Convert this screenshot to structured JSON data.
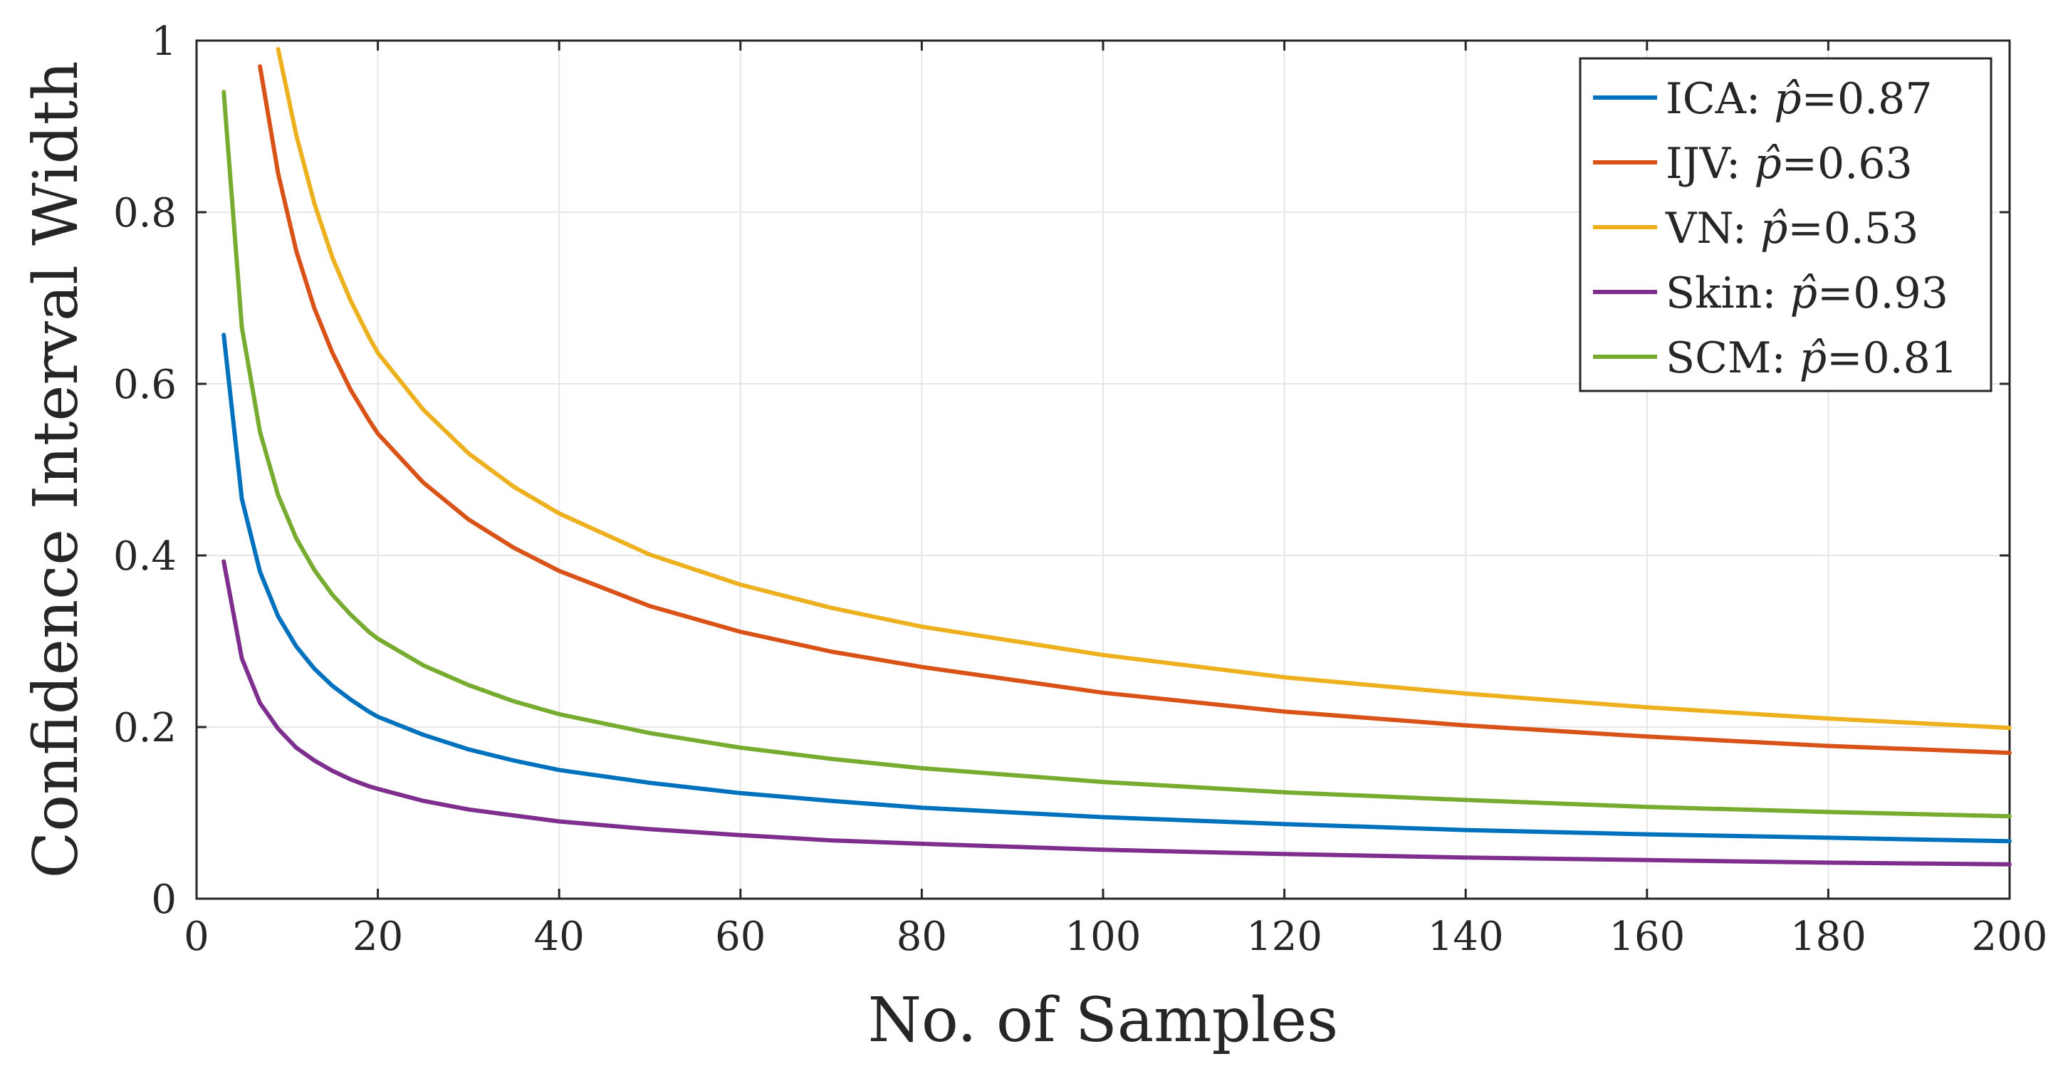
{
  "chart_data": {
    "type": "line",
    "xlabel": "No. of Samples",
    "ylabel": "Confidence Interval Width",
    "xlim": [
      0,
      200
    ],
    "ylim": [
      0,
      1
    ],
    "grid": true,
    "legend_position": "top-right",
    "xticks": [
      0,
      20,
      40,
      60,
      80,
      100,
      120,
      140,
      160,
      180,
      200
    ],
    "yticks": [
      0,
      0.2,
      0.4,
      0.6,
      0.8,
      1
    ],
    "xtick_labels": [
      "0",
      "20",
      "40",
      "60",
      "80",
      "100",
      "120",
      "140",
      "160",
      "180",
      "200"
    ],
    "ytick_labels": [
      "0",
      "0.2",
      "0.4",
      "0.6",
      "0.8",
      "1"
    ],
    "series": [
      {
        "name": "ICA: p̂=0.87",
        "label": "ICA:",
        "p_value": "0.87",
        "color": "#0072BD",
        "x": [
          3,
          5,
          7,
          9,
          11,
          13,
          15,
          17,
          19,
          20,
          25,
          30,
          35,
          40,
          50,
          60,
          70,
          80,
          100,
          120,
          140,
          160,
          180,
          200
        ],
        "y": [
          0.657,
          0.466,
          0.381,
          0.329,
          0.294,
          0.268,
          0.248,
          0.232,
          0.218,
          0.212,
          0.191,
          0.174,
          0.161,
          0.15,
          0.135,
          0.123,
          0.114,
          0.106,
          0.095,
          0.087,
          0.08,
          0.075,
          0.071,
          0.067
        ]
      },
      {
        "name": "IJV: p̂=0.63",
        "label": "IJV:",
        "p_value": "0.63",
        "color": "#D95319",
        "x": [
          7,
          9,
          11,
          13,
          15,
          17,
          19,
          20,
          25,
          30,
          35,
          40,
          50,
          60,
          70,
          80,
          100,
          120,
          140,
          160,
          180,
          200
        ],
        "y": [
          0.97,
          0.845,
          0.755,
          0.688,
          0.636,
          0.593,
          0.558,
          0.542,
          0.485,
          0.442,
          0.409,
          0.382,
          0.341,
          0.311,
          0.288,
          0.27,
          0.24,
          0.218,
          0.202,
          0.189,
          0.178,
          0.17
        ]
      },
      {
        "name": "VN: p̂=0.53",
        "label": "VN:",
        "p_value": "0.53",
        "color": "#EDB120",
        "x": [
          9,
          11,
          13,
          15,
          17,
          19,
          20,
          25,
          30,
          35,
          40,
          50,
          60,
          70,
          80,
          100,
          120,
          140,
          160,
          180,
          200
        ],
        "y": [
          0.99,
          0.89,
          0.81,
          0.747,
          0.697,
          0.655,
          0.636,
          0.57,
          0.519,
          0.48,
          0.449,
          0.401,
          0.366,
          0.339,
          0.317,
          0.284,
          0.258,
          0.239,
          0.223,
          0.21,
          0.199
        ]
      },
      {
        "name": "Skin: p̂=0.93",
        "label": "Skin:",
        "p_value": "0.93",
        "color": "#7E2F8E",
        "x": [
          3,
          5,
          7,
          9,
          11,
          13,
          15,
          17,
          19,
          20,
          25,
          30,
          35,
          40,
          50,
          60,
          70,
          80,
          100,
          120,
          140,
          160,
          180,
          200
        ],
        "y": [
          0.393,
          0.28,
          0.228,
          0.198,
          0.176,
          0.161,
          0.149,
          0.139,
          0.131,
          0.128,
          0.114,
          0.104,
          0.097,
          0.09,
          0.081,
          0.074,
          0.068,
          0.064,
          0.057,
          0.052,
          0.048,
          0.045,
          0.042,
          0.04
        ]
      },
      {
        "name": "SCM: p̂=0.81",
        "label": "SCM:",
        "p_value": "0.81",
        "color": "#77AC30",
        "x": [
          3,
          5,
          7,
          9,
          11,
          13,
          15,
          17,
          19,
          20,
          25,
          30,
          35,
          40,
          50,
          60,
          70,
          80,
          100,
          120,
          140,
          160,
          180,
          200
        ],
        "y": [
          0.94,
          0.666,
          0.544,
          0.47,
          0.42,
          0.383,
          0.354,
          0.331,
          0.311,
          0.303,
          0.272,
          0.249,
          0.23,
          0.215,
          0.193,
          0.176,
          0.163,
          0.152,
          0.136,
          0.124,
          0.115,
          0.107,
          0.101,
          0.096
        ]
      }
    ]
  }
}
